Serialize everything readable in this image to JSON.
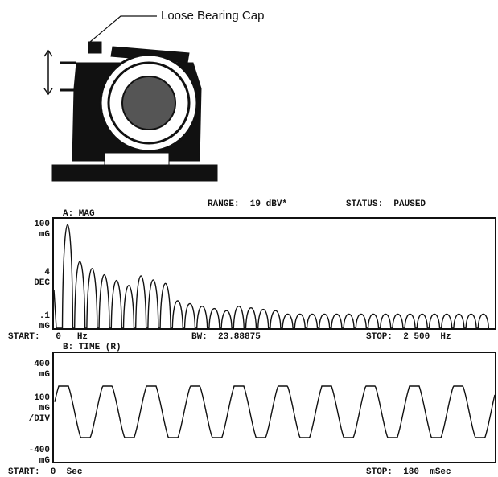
{
  "callout": {
    "label": "Loose Bearing Cap"
  },
  "header": {
    "range": "RANGE:  19 dBV*",
    "status": "STATUS:  PAUSED"
  },
  "plot_a": {
    "title": "A: MAG",
    "y_labels": [
      [
        "100",
        "mG"
      ],
      [
        "4",
        "DEC"
      ],
      [
        ".1",
        "mG"
      ]
    ],
    "start": "START:   0   Hz",
    "bw": "BW:  23.88875",
    "stop": "STOP:  2 500  Hz"
  },
  "plot_b": {
    "title": "B: TIME (R)",
    "y_labels": [
      [
        "400",
        "mG"
      ],
      [
        "100",
        "mG",
        "/DIV"
      ],
      [
        "-400",
        "mG"
      ]
    ],
    "start": "START:  0  Sec",
    "stop": "STOP:  180  mSec"
  }
}
